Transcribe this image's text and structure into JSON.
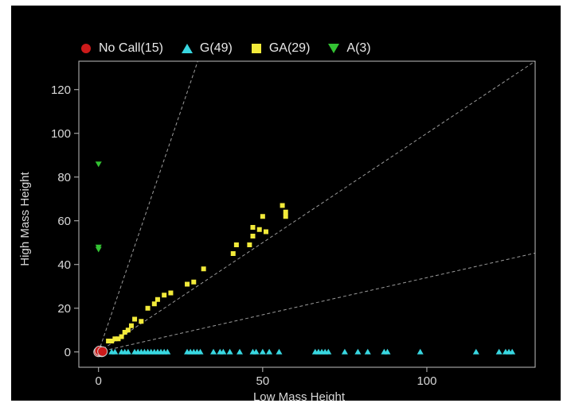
{
  "chart_data": {
    "type": "scatter",
    "xlabel": "Low Mass Height",
    "ylabel": "High Mass Height",
    "xlim": [
      -6,
      133
    ],
    "ylim": [
      -7,
      133
    ],
    "xticks": [
      0,
      50,
      100
    ],
    "yticks": [
      0,
      20,
      40,
      60,
      80,
      100,
      120
    ],
    "grid": false,
    "legend_position": "top",
    "reference_lines": [
      {
        "slope": 4.4,
        "style": "dashed"
      },
      {
        "slope": 1.0,
        "style": "dashed"
      },
      {
        "slope": 0.34,
        "style": "dashed"
      }
    ],
    "series": [
      {
        "name": "No Call(15)",
        "marker": "circle",
        "color": "#cc1a1a",
        "points": [
          [
            0,
            0
          ],
          [
            0.5,
            0.3
          ],
          [
            1,
            0
          ],
          [
            0.3,
            0.5
          ],
          [
            1.2,
            0.2
          ]
        ]
      },
      {
        "name": "G(49)",
        "marker": "triangle-up",
        "color": "#38d6e0",
        "points": [
          [
            4,
            0
          ],
          [
            5,
            0
          ],
          [
            7,
            0
          ],
          [
            8,
            0
          ],
          [
            9,
            0
          ],
          [
            11,
            0
          ],
          [
            12,
            0
          ],
          [
            13,
            0
          ],
          [
            14,
            0
          ],
          [
            15,
            0
          ],
          [
            16,
            0
          ],
          [
            17,
            0
          ],
          [
            18,
            0
          ],
          [
            19,
            0
          ],
          [
            20,
            0
          ],
          [
            21,
            0
          ],
          [
            27,
            0
          ],
          [
            28,
            0
          ],
          [
            29,
            0
          ],
          [
            30,
            0
          ],
          [
            31,
            0
          ],
          [
            35,
            0
          ],
          [
            37,
            0
          ],
          [
            38,
            0
          ],
          [
            40,
            0
          ],
          [
            43,
            0
          ],
          [
            47,
            0
          ],
          [
            48,
            0
          ],
          [
            50,
            0
          ],
          [
            52,
            0
          ],
          [
            55,
            0
          ],
          [
            66,
            0
          ],
          [
            67,
            0
          ],
          [
            68,
            0
          ],
          [
            69,
            0
          ],
          [
            70,
            0
          ],
          [
            75,
            0
          ],
          [
            79,
            0
          ],
          [
            82,
            0
          ],
          [
            87,
            0
          ],
          [
            88,
            0
          ],
          [
            98,
            0
          ],
          [
            115,
            0
          ],
          [
            122,
            0
          ],
          [
            124,
            0
          ],
          [
            125,
            0
          ],
          [
            126,
            0
          ]
        ]
      },
      {
        "name": "GA(29)",
        "marker": "square",
        "color": "#f2ea3a",
        "points": [
          [
            3,
            5
          ],
          [
            4,
            5
          ],
          [
            5,
            6
          ],
          [
            6,
            6
          ],
          [
            7,
            7
          ],
          [
            8,
            9
          ],
          [
            9,
            10
          ],
          [
            10,
            12
          ],
          [
            11,
            15
          ],
          [
            13,
            14
          ],
          [
            15,
            20
          ],
          [
            17,
            22
          ],
          [
            18,
            24
          ],
          [
            20,
            26
          ],
          [
            22,
            27
          ],
          [
            27,
            31
          ],
          [
            29,
            32
          ],
          [
            32,
            38
          ],
          [
            41,
            45
          ],
          [
            42,
            49
          ],
          [
            46,
            49
          ],
          [
            47,
            53
          ],
          [
            47,
            57
          ],
          [
            49,
            56
          ],
          [
            50,
            62
          ],
          [
            51,
            55
          ],
          [
            56,
            67
          ],
          [
            57,
            64
          ],
          [
            57,
            62
          ]
        ]
      },
      {
        "name": "A(3)",
        "marker": "triangle-down",
        "color": "#33c233",
        "points": [
          [
            0,
            86
          ],
          [
            0,
            48
          ],
          [
            0,
            47
          ]
        ]
      }
    ]
  }
}
